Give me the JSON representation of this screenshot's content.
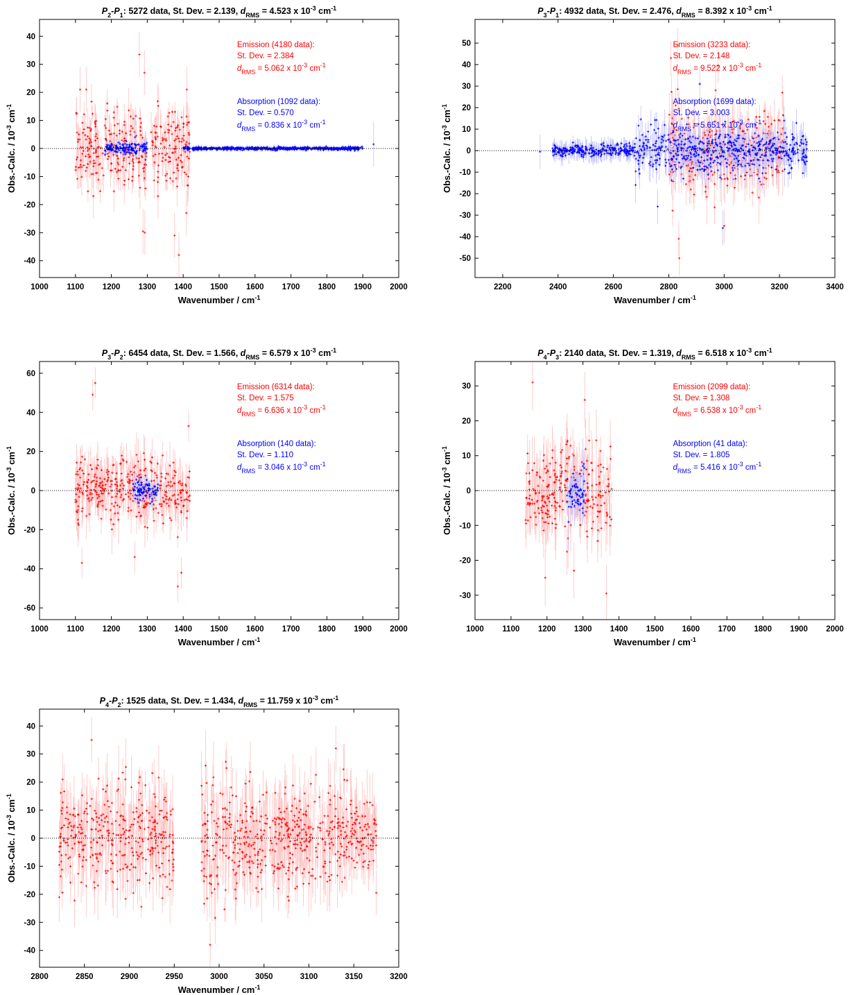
{
  "chart_data": [
    {
      "type": "scatter",
      "title": "P2-P1: 5272 data, St. Dev. = 2.139, dRMS = 4.523 x 10-3 cm-1",
      "title_parts": {
        "a": "P",
        "a_sub": "2",
        "b": "P",
        "b_sub": "1",
        "main": ": 5272 data, St. Dev. = 2.139, ",
        "d": "d",
        "d_sub": "RMS",
        "value": " = 4.523 x 10",
        "exp": "-3",
        "unit": " cm",
        "unit_exp": "-1"
      },
      "xlabel": "Wavenumber / cm",
      "xlabel_sup": "-1",
      "ylabel": "Obs.-Calc. / 10",
      "ylabel_sup": "-3",
      "ylabel_unit": " cm",
      "ylabel_unit_sup": "-1",
      "xlim": [
        1000,
        2000
      ],
      "ylim": [
        -46,
        46
      ],
      "xticks": [
        "1000",
        "1100",
        "1200",
        "1300",
        "1400",
        "1500",
        "1600",
        "1700",
        "1800",
        "1900",
        "2000"
      ],
      "yticks": [
        "-40",
        "-30",
        "-20",
        "-10",
        "0",
        "10",
        "20",
        "30",
        "40"
      ],
      "xtick_values": [
        1000,
        1100,
        1200,
        1300,
        1400,
        1500,
        1600,
        1700,
        1800,
        1900,
        2000
      ],
      "ytick_values": [
        -40,
        -30,
        -20,
        -10,
        0,
        10,
        20,
        30,
        40
      ],
      "grid": false,
      "zero_line": "dotted",
      "annotations": {
        "emission": {
          "title": "Emission (4180 data):",
          "stdev": "St. Dev. = 2.384",
          "d": "d",
          "d_sub": "RMS",
          "value": " = 5.062 x 10",
          "exp": "-3",
          "unit": " cm",
          "unit_exp": "-1"
        },
        "absorption": {
          "title": "Absorption (1092 data):",
          "stdev": "St. Dev. = 0.570",
          "d": "d",
          "d_sub": "RMS",
          "value": " = 0.836 x 10",
          "exp": "-3",
          "unit": " cm",
          "unit_exp": "-1"
        }
      },
      "series": [
        {
          "name": "Emission",
          "color": "#ff0000",
          "errcolor": "#ffc0c0",
          "segments": [
            [
              1100,
              1300,
              9,
              5
            ],
            [
              1310,
              1420,
              9,
              5
            ]
          ],
          "outliers": [
            [
              1278,
              33.5
            ],
            [
              1292,
              27
            ],
            [
              1288,
              -29.5
            ],
            [
              1293,
              -30
            ],
            [
              1376,
              -31
            ],
            [
              1388,
              -38
            ],
            [
              1113,
              21
            ],
            [
              1130,
              21
            ],
            [
              1410,
              21
            ],
            [
              1409,
              -23
            ],
            [
              1150,
              -17
            ],
            [
              1330,
              -17
            ]
          ]
        },
        {
          "name": "Absorption",
          "color": "#0000ff",
          "errcolor": "#c0c0ff",
          "segments": [
            [
              1180,
              1300,
              1.5,
              1.2
            ],
            [
              1400,
              1900,
              0.4,
              0.6
            ]
          ],
          "outliers": [
            [
              1930,
              1.5
            ],
            [
              1266,
              4
            ],
            [
              1295,
              -4
            ]
          ]
        }
      ]
    },
    {
      "type": "scatter",
      "title": "P3-P1: 4932 data, St. Dev. = 2.476, dRMS = 8.392 x 10-3 cm-1",
      "title_parts": {
        "a": "P",
        "a_sub": "3",
        "b": "P",
        "b_sub": "1",
        "main": ": 4932 data, St. Dev. = 2.476, ",
        "d": "d",
        "d_sub": "RMS",
        "value": " = 8.392 x 10",
        "exp": "-3",
        "unit": " cm",
        "unit_exp": "-1"
      },
      "xlabel": "Wavenumber / cm",
      "xlabel_sup": "-1",
      "ylabel": "Obs.-Calc. / 10",
      "ylabel_sup": "-3",
      "ylabel_unit": " cm",
      "ylabel_unit_sup": "-1",
      "xlim": [
        2100,
        3400
      ],
      "ylim": [
        -59,
        61
      ],
      "xticks": [
        "2200",
        "2400",
        "2600",
        "2800",
        "3000",
        "3200",
        "3400"
      ],
      "yticks": [
        "-50",
        "-40",
        "-30",
        "-20",
        "-10",
        "0",
        "10",
        "20",
        "30",
        "40",
        "50"
      ],
      "xtick_values": [
        2200,
        2400,
        2600,
        2800,
        3000,
        3200,
        3400
      ],
      "ytick_values": [
        -50,
        -40,
        -30,
        -20,
        -10,
        0,
        10,
        20,
        30,
        40,
        50
      ],
      "grid": false,
      "zero_line": "dotted",
      "annotations": {
        "emission": {
          "title": "Emission (3233 data):",
          "stdev": "St. Dev. = 2.148",
          "d": "d",
          "d_sub": "RMS",
          "value": " = 9.522 x 10",
          "exp": "-3",
          "unit": " cm",
          "unit_exp": "-1"
        },
        "absorption": {
          "title": "Absorption (1699 data):",
          "stdev": "St. Dev. = 3.003",
          "d": "d",
          "d_sub": "RMS",
          "value": " = 5.651 x 10",
          "exp": "-3",
          "unit": " cm",
          "unit_exp": "-1"
        }
      },
      "series": [
        {
          "name": "Emission",
          "color": "#ff0000",
          "errcolor": "#ffc0c0",
          "segments": [
            [
              2800,
              3220,
              12,
              8
            ]
          ],
          "outliers": [
            [
              2832,
              49
            ],
            [
              2808,
              43
            ],
            [
              2838,
              -50
            ],
            [
              2836,
              -41
            ],
            [
              2978,
              39.5
            ],
            [
              3000,
              -35
            ],
            [
              3210,
              27
            ]
          ]
        },
        {
          "name": "Absorption",
          "color": "#0000ff",
          "errcolor": "#c0c0ff",
          "segments": [
            [
              2380,
              2680,
              2,
              3
            ],
            [
              2680,
              3300,
              7,
              5
            ]
          ],
          "outliers": [
            [
              2335,
              -0.5
            ],
            [
              2912,
              31
            ],
            [
              2995,
              -36
            ],
            [
              2680,
              -16
            ],
            [
              2760,
              -26
            ],
            [
              3290,
              -3
            ]
          ]
        }
      ]
    },
    {
      "type": "scatter",
      "title": "P3-P2: 6454 data, St. Dev. = 1.566, dRMS = 6.579 x 10-3 cm-1",
      "title_parts": {
        "a": "P",
        "a_sub": "3",
        "b": "P",
        "b_sub": "2",
        "main": ": 6454 data, St. Dev. = 1.566, ",
        "d": "d",
        "d_sub": "RMS",
        "value": " = 6.579 x 10",
        "exp": "-3",
        "unit": " cm",
        "unit_exp": "-1"
      },
      "xlabel": "Wavenumber / cm",
      "xlabel_sup": "-1",
      "ylabel": "Obs.-Calc. / 10",
      "ylabel_sup": "-3",
      "ylabel_unit": " cm",
      "ylabel_unit_sup": "-1",
      "xlim": [
        1000,
        2000
      ],
      "ylim": [
        -66,
        66
      ],
      "xticks": [
        "1000",
        "1100",
        "1200",
        "1300",
        "1400",
        "1500",
        "1600",
        "1700",
        "1800",
        "1900",
        "2000"
      ],
      "yticks": [
        "-60",
        "-40",
        "-20",
        "0",
        "20",
        "40",
        "60"
      ],
      "xtick_values": [
        1000,
        1100,
        1200,
        1300,
        1400,
        1500,
        1600,
        1700,
        1800,
        1900,
        2000
      ],
      "ytick_values": [
        -60,
        -40,
        -20,
        0,
        20,
        40,
        60
      ],
      "grid": false,
      "zero_line": "dotted",
      "annotations": {
        "emission": {
          "title": "Emission (6314 data):",
          "stdev": "St. Dev. = 1.575",
          "d": "d",
          "d_sub": "RMS",
          "value": " = 6.636 x 10",
          "exp": "-3",
          "unit": " cm",
          "unit_exp": "-1"
        },
        "absorption": {
          "title": "Absorption (140 data):",
          "stdev": "St. Dev. = 1.110",
          "d": "d",
          "d_sub": "RMS",
          "value": " = 3.046 x 10",
          "exp": "-3",
          "unit": " cm",
          "unit_exp": "-1"
        }
      },
      "series": [
        {
          "name": "Emission",
          "color": "#ff0000",
          "errcolor": "#ffc0c0",
          "segments": [
            [
              1100,
              1420,
              11,
              8
            ]
          ],
          "outliers": [
            [
              1155,
              55
            ],
            [
              1148,
              49
            ],
            [
              1385,
              -49
            ],
            [
              1395,
              -42
            ],
            [
              1415,
              33
            ],
            [
              1118,
              -37
            ],
            [
              1265,
              -34
            ]
          ]
        },
        {
          "name": "Absorption",
          "color": "#0000ff",
          "errcolor": "#c0c0ff",
          "segments": [
            [
              1260,
              1330,
              4,
              3
            ]
          ],
          "outliers": [
            [
              1265,
              2
            ],
            [
              1300,
              3
            ],
            [
              1330,
              0
            ]
          ]
        }
      ]
    },
    {
      "type": "scatter",
      "title": "P4-P3: 2140 data, St. Dev. = 1.319, dRMS = 6.518 x 10-3 cm-1",
      "title_parts": {
        "a": "P",
        "a_sub": "4",
        "b": "P",
        "b_sub": "3",
        "main": ": 2140 data, St. Dev. = 1.319, ",
        "d": "d",
        "d_sub": "RMS",
        "value": " = 6.518 x 10",
        "exp": "-3",
        "unit": " cm",
        "unit_exp": "-1"
      },
      "xlabel": "Wavenumber / cm",
      "xlabel_sup": "-1",
      "ylabel": "Obs.-Calc. / 10",
      "ylabel_sup": "-3",
      "ylabel_unit": " cm",
      "ylabel_unit_sup": "-1",
      "xlim": [
        1000,
        2000
      ],
      "ylim": [
        -37,
        37
      ],
      "xticks": [
        "1000",
        "1100",
        "1200",
        "1300",
        "1400",
        "1500",
        "1600",
        "1700",
        "1800",
        "1900",
        "2000"
      ],
      "yticks": [
        "-30",
        "-20",
        "-10",
        "0",
        "10",
        "20",
        "30"
      ],
      "xtick_values": [
        1000,
        1100,
        1200,
        1300,
        1400,
        1500,
        1600,
        1700,
        1800,
        1900,
        2000
      ],
      "ytick_values": [
        -30,
        -20,
        -10,
        0,
        10,
        20,
        30
      ],
      "grid": false,
      "zero_line": "dotted",
      "annotations": {
        "emission": {
          "title": "Emission (2099 data):",
          "stdev": "St. Dev. = 1.308",
          "d": "d",
          "d_sub": "RMS",
          "value": " = 6.538 x 10",
          "exp": "-3",
          "unit": " cm",
          "unit_exp": "-1"
        },
        "absorption": {
          "title": "Absorption (41 data):",
          "stdev": "St. Dev. = 1.805",
          "d": "d",
          "d_sub": "RMS",
          "value": " = 5.416 x 10",
          "exp": "-3",
          "unit": " cm",
          "unit_exp": "-1"
        }
      },
      "series": [
        {
          "name": "Emission",
          "color": "#ff0000",
          "errcolor": "#ffc0c0",
          "segments": [
            [
              1140,
              1380,
              9,
              6
            ]
          ],
          "outliers": [
            [
              1160,
              31
            ],
            [
              1365,
              -29.5
            ],
            [
              1305,
              26
            ],
            [
              1275,
              -23
            ],
            [
              1195,
              -25
            ]
          ]
        },
        {
          "name": "Absorption",
          "color": "#0000ff",
          "errcolor": "#c0c0ff",
          "segments": [
            [
              1255,
              1305,
              4,
              4
            ]
          ],
          "outliers": [
            [
              1260,
              -9
            ],
            [
              1300,
              7
            ]
          ]
        }
      ]
    },
    {
      "type": "scatter",
      "title": "P4-P2: 1525 data, St. Dev. = 1.434, dRMS = 11.759 x 10-3 cm-1",
      "title_parts": {
        "a": "P",
        "a_sub": "4",
        "b": "P",
        "b_sub": "2",
        "main": ": 1525 data, St. Dev. = 1.434, ",
        "d": "d",
        "d_sub": "RMS",
        "value": " = 11.759 x 10",
        "exp": "-3",
        "unit": " cm",
        "unit_exp": "-1"
      },
      "xlabel": "Wavenumber / cm",
      "xlabel_sup": "-1",
      "ylabel": "Obs.-Calc. / 10",
      "ylabel_sup": "-3",
      "ylabel_unit": " cm",
      "ylabel_unit_sup": "-1",
      "xlim": [
        2800,
        3200
      ],
      "ylim": [
        -46,
        46
      ],
      "xticks": [
        "2800",
        "2850",
        "2900",
        "2950",
        "3000",
        "3050",
        "3100",
        "3150",
        "3200"
      ],
      "yticks": [
        "-40",
        "-30",
        "-20",
        "-10",
        "0",
        "10",
        "20",
        "30",
        "40"
      ],
      "xtick_values": [
        2800,
        2850,
        2900,
        2950,
        3000,
        3050,
        3100,
        3150,
        3200
      ],
      "ytick_values": [
        -40,
        -30,
        -20,
        -10,
        0,
        10,
        20,
        30,
        40
      ],
      "grid": false,
      "zero_line": "dotted",
      "series": [
        {
          "name": "Emission",
          "color": "#ff0000",
          "errcolor": "#ffc0c0",
          "segments": [
            [
              2822,
              2950,
              12,
              8
            ],
            [
              2980,
              3010,
              16,
              8
            ],
            [
              3010,
              3175,
              12,
              8
            ]
          ],
          "outliers": [
            [
              2858,
              35
            ],
            [
              2822,
              -9.5
            ],
            [
              2990,
              -38
            ],
            [
              3130,
              32
            ],
            [
              3175,
              -19.5
            ]
          ]
        }
      ]
    }
  ]
}
